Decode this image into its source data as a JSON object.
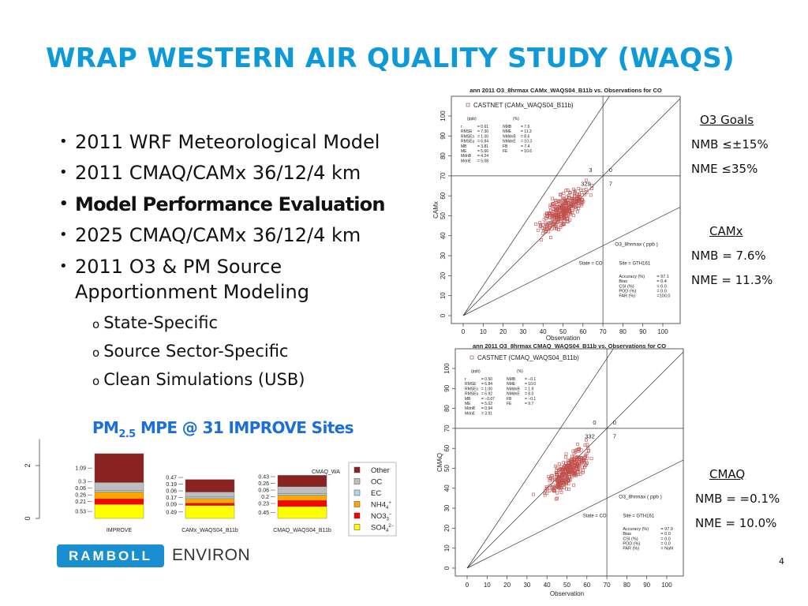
{
  "title": "WRAP WESTERN AIR QUALITY STUDY (WAQS)",
  "bullets": [
    "2011 WRF Meteorological Model",
    "2011 CMAQ/CAMx 36/12/4 km",
    "Model Performance Evaluation",
    "2025 CMAQ/CAMx 36/12/4 km",
    "2011 O3 & PM Source",
    "Apportionment Modeling"
  ],
  "sub_bullets": [
    "State-Specific",
    "Source Sector-Specific",
    "Clean Simulations (USB)"
  ],
  "pm_heading": {
    "pre": "PM",
    "sub": "2.5",
    "post": " MPE @ 31 IMPROVE Sites"
  },
  "goals": {
    "heading": "O3 Goals",
    "nmb": "NMB ≤±15%",
    "nme": "NME ≤35%"
  },
  "camx_summary": {
    "heading": "CAMx",
    "nmb": "NMB = 7.6%",
    "nme": "NME = 11.3%"
  },
  "cmaq_summary": {
    "heading": "CMAQ",
    "nmb": "NMB = =0.1%",
    "nme": "NME = 10.0%"
  },
  "page_number": "4",
  "logo": {
    "brand": "RAMBOLL",
    "sub": "ENVIRON"
  },
  "scatter_plots": [
    {
      "title": "ann 2011 O3_8hrmax CAMx_WAQS04_B11b vs. Observations for CO",
      "legend": "CASTNET (CAMx_WAQS04_B11b)",
      "ylabel": "CAMx",
      "xlabel": "Observation",
      "ppb_header": "(ppb)",
      "pct_header": "(%)",
      "stats_left": [
        [
          "r",
          "=  0.61"
        ],
        [
          "RMSE",
          "=  7.30"
        ],
        [
          "RMSEs",
          "=  1.00"
        ],
        [
          "RMSEu",
          "=  6.84"
        ],
        [
          "MB",
          "=  3.81"
        ],
        [
          "ME",
          "=  5.66"
        ],
        [
          "MdnB",
          "=  4.24"
        ],
        [
          "MdnE",
          "=  5.08"
        ]
      ],
      "stats_right": [
        [
          "NMB",
          "=  7.6"
        ],
        [
          "NME",
          "=  11.3"
        ],
        [
          "NMdnB",
          "=  8.6"
        ],
        [
          "NMdnE",
          "=  10.3"
        ],
        [
          "FB",
          "=  7.4"
        ],
        [
          "FE",
          "=  10.6"
        ]
      ],
      "quadrant_counts": [
        "3",
        "0",
        "329",
        "7"
      ],
      "variable": "O3_8hrmax  ( ppb )",
      "state": "State = CO",
      "site": "Site = GTH161",
      "metrics": [
        [
          "Accuracy (%)",
          "=  97.1"
        ],
        [
          "Bias",
          "=  0.4"
        ],
        [
          "CSI (%)",
          "=  0.0"
        ],
        [
          "POD (%)",
          "=  0.0"
        ],
        [
          "FAR (%)",
          "=100.0"
        ]
      ],
      "ticks": [
        "0",
        "10",
        "20",
        "30",
        "40",
        "50",
        "60",
        "70",
        "80",
        "90",
        "100"
      ]
    },
    {
      "title": "ann 2011 O3_8hrmax CMAQ_WAQS04_B11b vs. Observations for CO",
      "legend": "CASTNET (CMAQ_WAQS04_B11b)",
      "ylabel": "CMAQ",
      "xlabel": "Observation",
      "ppb_header": "(ppb)",
      "pct_header": "(%)",
      "stats_left": [
        [
          "r",
          "=  0.50"
        ],
        [
          "RMSE",
          "=  6.84"
        ],
        [
          "RMSEs",
          "=  1.00"
        ],
        [
          "RMSEu",
          "=  6.92"
        ],
        [
          "MB",
          "= −0.07"
        ],
        [
          "ME",
          "=  5.02"
        ],
        [
          "MdnB",
          "=  0.94"
        ],
        [
          "MdnE",
          "=  3.91"
        ]
      ],
      "stats_right": [
        [
          "NMB",
          "= −0.1"
        ],
        [
          "NME",
          "=  10.0"
        ],
        [
          "NMdnB",
          "=  1.9"
        ],
        [
          "NMdnE",
          "=  8.0"
        ],
        [
          "FB",
          "= −0.1"
        ],
        [
          "FE",
          "=  9.7"
        ]
      ],
      "quadrant_counts": [
        "0",
        "0",
        "332",
        "7"
      ],
      "variable": "O3_8hrmax  ( ppb )",
      "state": "State = CO",
      "site": "Site = GTH161",
      "metrics": [
        [
          "Accuracy (%)",
          "=  97.9"
        ],
        [
          "Bias",
          "=  0.0"
        ],
        [
          "CSI (%)",
          "=  0.0"
        ],
        [
          "POD (%)",
          "=  0.0"
        ],
        [
          "FAR (%)",
          "=  NaN"
        ]
      ],
      "ticks": [
        "0",
        "10",
        "20",
        "30",
        "40",
        "50",
        "60",
        "70",
        "80",
        "90",
        "100"
      ]
    }
  ],
  "bar_chart": {
    "type": "stacked-bar",
    "categories": [
      "IMPROVE",
      "CAMx_WAQS04_B11b",
      "CMAQ_WAQS04_B11b"
    ],
    "y_ticks": [
      "0",
      "2"
    ],
    "fragment_label": "CMAQ_WA",
    "series": [
      {
        "name": "SO4",
        "sup": "2−",
        "sub": "4",
        "color": "#ffff00",
        "values": [
          0.53,
          0.49,
          0.45
        ],
        "labels": [
          "0.53",
          "0.49",
          "0.45"
        ]
      },
      {
        "name": "NO3",
        "sup": "−",
        "sub": "3",
        "color": "#ff0000",
        "values": [
          0.21,
          0.09,
          0.23
        ],
        "labels": [
          "0.21",
          "0.09",
          "0.23"
        ]
      },
      {
        "name": "NH4",
        "sup": "+",
        "sub": "4",
        "color": "#ffa500",
        "values": [
          0.26,
          0.17,
          0.2
        ],
        "labels": [
          "0.26",
          "0.17",
          "0.2"
        ]
      },
      {
        "name": "EC",
        "sup": "",
        "sub": "",
        "color": "#add8e6",
        "values": [
          0.06,
          0.06,
          0.06
        ],
        "labels": [
          "0.06",
          "0.06",
          "0.06"
        ]
      },
      {
        "name": "OC",
        "sup": "",
        "sub": "",
        "color": "#bebebe",
        "values": [
          0.3,
          0.19,
          0.26
        ],
        "labels": [
          "0.3",
          "0.19",
          "0.26"
        ]
      },
      {
        "name": "Other",
        "sup": "",
        "sub": "",
        "color": "#8b2222",
        "values": [
          1.09,
          0.47,
          0.43
        ],
        "labels": [
          "1.09",
          "0.47",
          "0.43"
        ]
      }
    ]
  }
}
